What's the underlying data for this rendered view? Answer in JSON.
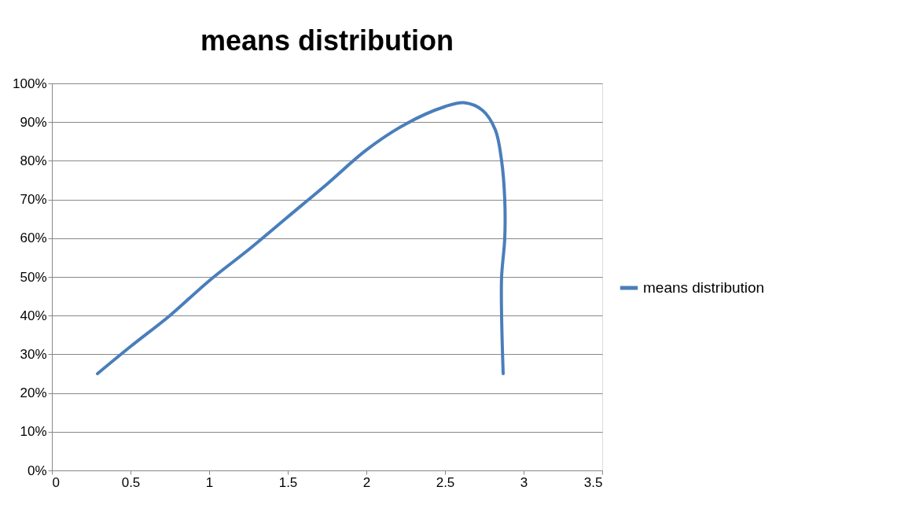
{
  "chart_data": {
    "type": "line",
    "title": "means distribution",
    "series": [
      {
        "name": "means distribution",
        "color": "#4a7ebb",
        "x": [
          0.29,
          0.5,
          0.75,
          1.0,
          1.25,
          1.5,
          1.75,
          2.0,
          2.25,
          2.5,
          2.62,
          2.74,
          2.82,
          2.86,
          2.88,
          2.88,
          2.86,
          2.86,
          2.87
        ],
        "values": [
          25,
          32,
          40,
          49,
          57,
          65.5,
          74,
          82.8,
          89.5,
          94,
          95,
          93,
          88,
          80,
          70,
          60,
          50,
          40,
          25
        ]
      }
    ],
    "xlim": [
      0,
      3.5
    ],
    "xticks": [
      0,
      0.5,
      1,
      1.5,
      2,
      2.5,
      3,
      3.5
    ],
    "ylim": [
      0,
      100
    ],
    "yticks": [
      {
        "value": 0,
        "label": "0%"
      },
      {
        "value": 10,
        "label": "10%"
      },
      {
        "value": 20,
        "label": "20%"
      },
      {
        "value": 30,
        "label": "30%"
      },
      {
        "value": 40,
        "label": "40%"
      },
      {
        "value": 50,
        "label": "50%"
      },
      {
        "value": 60,
        "label": "60%"
      },
      {
        "value": 70,
        "label": "70%"
      },
      {
        "value": 80,
        "label": "80%"
      },
      {
        "value": 90,
        "label": "90%"
      },
      {
        "value": 100,
        "label": "100%"
      }
    ],
    "grid": "y",
    "legend": "right",
    "marker": "none",
    "line_style": "solid"
  }
}
